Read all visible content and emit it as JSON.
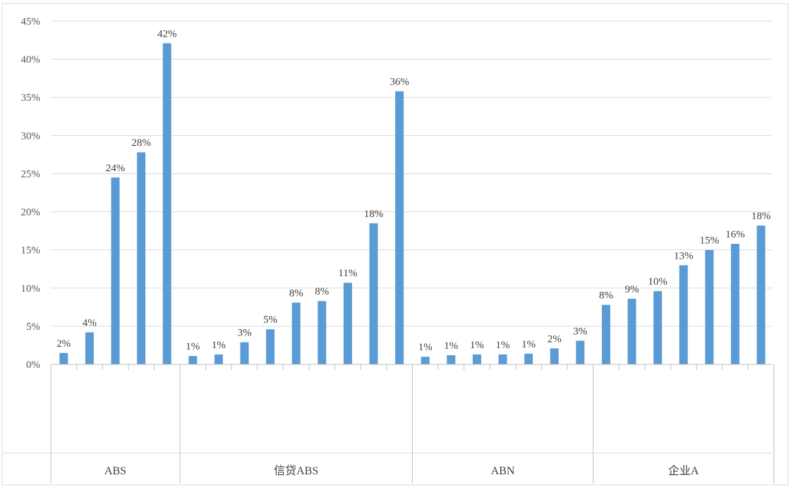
{
  "chart_data": {
    "type": "bar",
    "title": "",
    "xlabel": "",
    "ylabel": "",
    "ylim": [
      0,
      45
    ],
    "yticks": [
      0,
      5,
      10,
      15,
      20,
      25,
      30,
      35,
      40,
      45
    ],
    "ytick_labels": [
      "0%",
      "5%",
      "10%",
      "15%",
      "20%",
      "25%",
      "30%",
      "35%",
      "40%",
      "45%"
    ],
    "grid": true,
    "legend": "none",
    "bar_color": "#5B9BD5",
    "groups": [
      {
        "label": "ABS",
        "categories": [
          "",
          "",
          "",
          "",
          ""
        ],
        "values": [
          1.5,
          4.2,
          24.5,
          27.8,
          42.1
        ],
        "labels": [
          "2%",
          "4%",
          "24%",
          "28%",
          "42%"
        ]
      },
      {
        "label": "信贷ABS",
        "categories": [
          "",
          "",
          "",
          "",
          "",
          "",
          "",
          "",
          ""
        ],
        "values": [
          1.1,
          1.3,
          2.9,
          4.6,
          8.1,
          8.3,
          10.7,
          18.5,
          35.8
        ],
        "labels": [
          "1%",
          "1%",
          "3%",
          "5%",
          "8%",
          "8%",
          "11%",
          "18%",
          "36%"
        ]
      },
      {
        "label": "ABN",
        "categories": [
          "",
          "",
          "",
          "",
          "",
          "",
          ""
        ],
        "values": [
          1.0,
          1.2,
          1.3,
          1.3,
          1.4,
          2.1,
          3.1
        ],
        "labels": [
          "1%",
          "1%",
          "1%",
          "1%",
          "1%",
          "2%",
          "3%"
        ]
      },
      {
        "label": "企业A",
        "categories": [
          "",
          "",
          "",
          "",
          "",
          "",
          ""
        ],
        "values": [
          7.8,
          8.6,
          9.6,
          13.0,
          15.0,
          15.8,
          18.2
        ],
        "labels": [
          "8%",
          "9%",
          "10%",
          "13%",
          "15%",
          "16%",
          "18%"
        ]
      }
    ]
  }
}
